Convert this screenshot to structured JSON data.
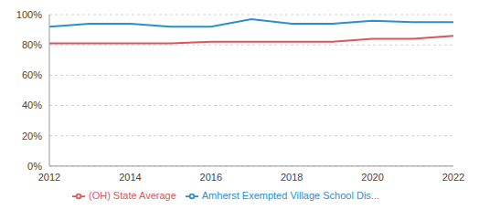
{
  "chart_data": {
    "type": "line",
    "x": [
      2012,
      2013,
      2014,
      2015,
      2016,
      2017,
      2018,
      2019,
      2020,
      2021,
      2022
    ],
    "series": [
      {
        "name": "Amherst Exempted Village  School Dis...",
        "color": "#2a8fcd",
        "values": [
          92,
          94,
          94,
          92,
          92,
          97,
          94,
          94,
          96,
          95,
          95
        ]
      },
      {
        "name": "(OH) State Average",
        "color": "#d9575b",
        "values": [
          81,
          81,
          81,
          81,
          82,
          82,
          82,
          82,
          84,
          84,
          86
        ]
      }
    ],
    "xlim": [
      2012,
      2022
    ],
    "xticks": [
      2012,
      2014,
      2016,
      2018,
      2020,
      2022
    ],
    "ylim": [
      0,
      100
    ],
    "yticks": [
      {
        "value": 0,
        "label": "0%"
      },
      {
        "value": 20,
        "label": "20%"
      },
      {
        "value": 40,
        "label": "40%"
      },
      {
        "value": 60,
        "label": "60%"
      },
      {
        "value": 80,
        "label": "80%"
      },
      {
        "value": 100,
        "label": "100%"
      }
    ],
    "grid": true,
    "legend": "bottom"
  }
}
